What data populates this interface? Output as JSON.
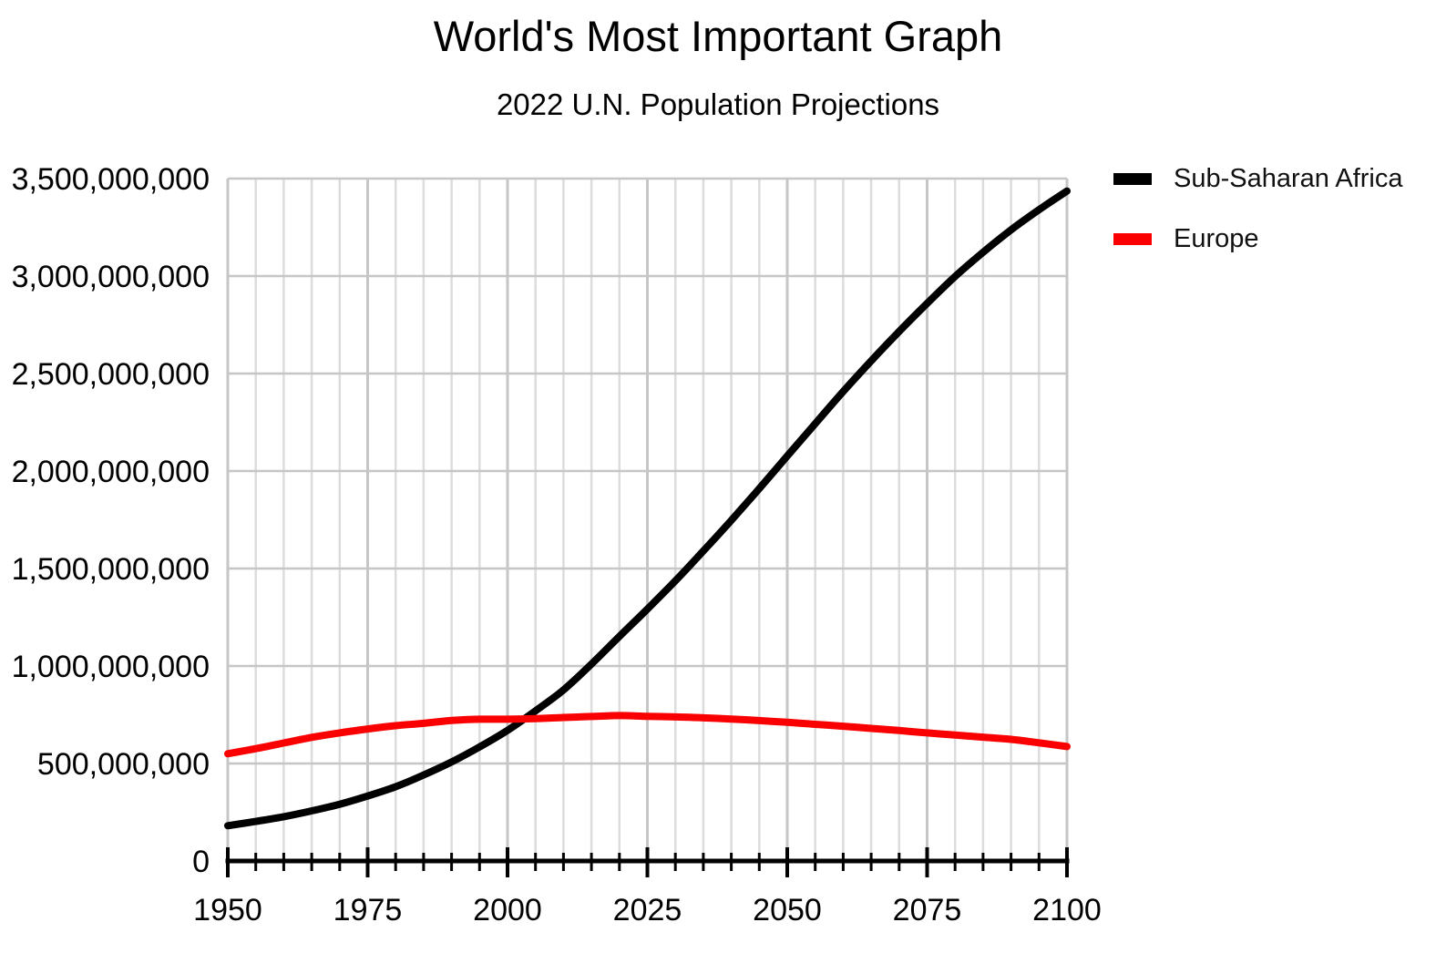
{
  "header": {
    "title": "World's Most Important Graph",
    "subtitle": "2022 U.N. Population Projections"
  },
  "chart_data": {
    "type": "line",
    "title": "World's Most Important Graph",
    "subtitle": "2022 U.N. Population Projections",
    "xlabel": "",
    "ylabel": "",
    "xlim": [
      1950,
      2100
    ],
    "ylim": [
      0,
      3500000000
    ],
    "x_major_ticks": [
      1950,
      1975,
      2000,
      2025,
      2050,
      2075,
      2100
    ],
    "x_minor_step": 5,
    "y_ticks": [
      0,
      500000000,
      1000000000,
      1500000000,
      2000000000,
      2500000000,
      3000000000,
      3500000000
    ],
    "y_tick_labels": [
      "0",
      "500,000,000",
      "1,000,000,000",
      "1,500,000,000",
      "2,000,000,000",
      "2,500,000,000",
      "3,000,000,000",
      "3,500,000,000"
    ],
    "grid": "both",
    "legend_position": "right-outside-top",
    "x": [
      1950,
      1955,
      1960,
      1965,
      1970,
      1975,
      1980,
      1985,
      1990,
      1995,
      2000,
      2005,
      2010,
      2015,
      2020,
      2025,
      2030,
      2035,
      2040,
      2045,
      2050,
      2055,
      2060,
      2065,
      2070,
      2075,
      2080,
      2085,
      2090,
      2095,
      2100
    ],
    "series": [
      {
        "name": "Sub-Saharan Africa",
        "color": "#000000",
        "values": [
          181000000,
          203000000,
          227000000,
          257000000,
          291000000,
          333000000,
          381000000,
          441000000,
          508000000,
          585000000,
          670000000,
          770000000,
          877000000,
          1010000000,
          1152000000,
          1292000000,
          1437000000,
          1590000000,
          1747000000,
          1910000000,
          2077000000,
          2243000000,
          2408000000,
          2565000000,
          2716000000,
          2860000000,
          2998000000,
          3122000000,
          3237000000,
          3340000000,
          3436000000
        ]
      },
      {
        "name": "Europe",
        "color": "#fa0000",
        "values": [
          550000000,
          576000000,
          605000000,
          634000000,
          657000000,
          677000000,
          694000000,
          706000000,
          721000000,
          727000000,
          727000000,
          730000000,
          736000000,
          741000000,
          746000000,
          742000000,
          739000000,
          734000000,
          728000000,
          720000000,
          711000000,
          701000000,
          691000000,
          680000000,
          669000000,
          657000000,
          646000000,
          635000000,
          624000000,
          606000000,
          587000000
        ]
      }
    ]
  },
  "colors": {
    "background": "#ffffff",
    "text": "#000000",
    "axis": "#000000",
    "grid_minor": "#dcdcdc",
    "grid_major": "#c6c6c6",
    "grid_horizontal": "#c6c6c6"
  }
}
